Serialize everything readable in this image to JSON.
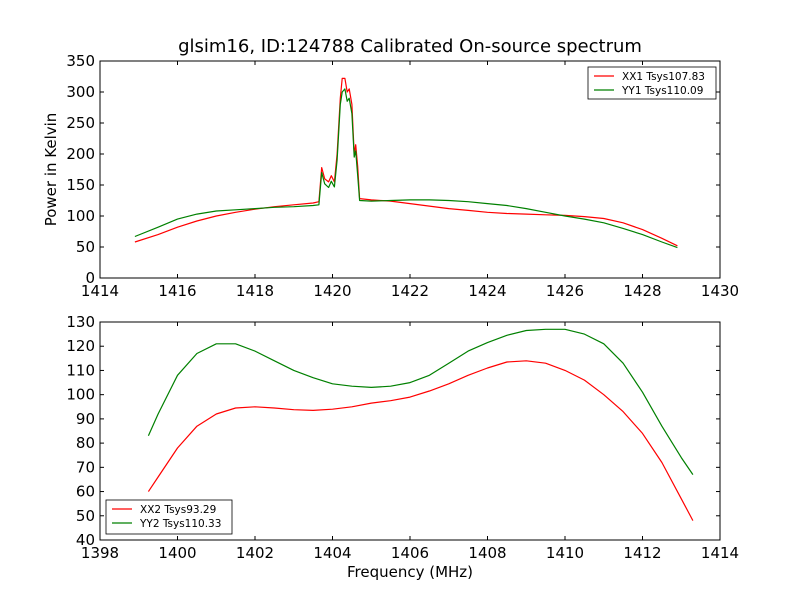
{
  "title": "glsim16, ID:124788 Calibrated On-source spectrum",
  "colors": {
    "red": "#ff0000",
    "green": "#008000",
    "axes": "#000000"
  },
  "chart_data": [
    {
      "type": "line",
      "title": "glsim16, ID:124788 Calibrated On-source spectrum",
      "xlabel": "",
      "ylabel": "Power in Kelvin",
      "xlim": [
        1414,
        1430
      ],
      "ylim": [
        0,
        350
      ],
      "xticks": [
        "1414",
        "1416",
        "1418",
        "1420",
        "1422",
        "1424",
        "1426",
        "1428",
        "1430"
      ],
      "yticks": [
        "0",
        "50",
        "100",
        "150",
        "200",
        "250",
        "300",
        "350"
      ],
      "grid": false,
      "legend_position": "top-right",
      "series": [
        {
          "name": "XX1 Tsys107.83",
          "color": "#ff0000",
          "points": [
            [
              1414.9,
              58
            ],
            [
              1415.5,
              70
            ],
            [
              1416,
              82
            ],
            [
              1416.5,
              92
            ],
            [
              1417,
              100
            ],
            [
              1417.5,
              106
            ],
            [
              1418,
              111
            ],
            [
              1418.5,
              115
            ],
            [
              1419,
              118
            ],
            [
              1419.5,
              121
            ],
            [
              1419.65,
              123
            ],
            [
              1419.72,
              178
            ],
            [
              1419.8,
              160
            ],
            [
              1419.9,
              155
            ],
            [
              1419.97,
              165
            ],
            [
              1420.05,
              155
            ],
            [
              1420.12,
              200
            ],
            [
              1420.2,
              290
            ],
            [
              1420.25,
              322
            ],
            [
              1420.32,
              322
            ],
            [
              1420.38,
              300
            ],
            [
              1420.43,
              305
            ],
            [
              1420.5,
              280
            ],
            [
              1420.56,
              200
            ],
            [
              1420.6,
              215
            ],
            [
              1420.65,
              180
            ],
            [
              1420.7,
              128
            ],
            [
              1421,
              126
            ],
            [
              1421.5,
              124
            ],
            [
              1422,
              120
            ],
            [
              1422.5,
              116
            ],
            [
              1423,
              112
            ],
            [
              1423.5,
              109
            ],
            [
              1424,
              106
            ],
            [
              1424.5,
              104
            ],
            [
              1425,
              103
            ],
            [
              1425.5,
              102
            ],
            [
              1426,
              101
            ],
            [
              1426.5,
              99
            ],
            [
              1427,
              96
            ],
            [
              1427.5,
              89
            ],
            [
              1428,
              78
            ],
            [
              1428.5,
              64
            ],
            [
              1428.9,
              52
            ]
          ]
        },
        {
          "name": "YY1 Tsys110.09",
          "color": "#008000",
          "points": [
            [
              1414.9,
              67
            ],
            [
              1415.5,
              82
            ],
            [
              1416,
              95
            ],
            [
              1416.5,
              103
            ],
            [
              1417,
              108
            ],
            [
              1417.5,
              110
            ],
            [
              1418,
              112
            ],
            [
              1418.5,
              114
            ],
            [
              1419,
              115
            ],
            [
              1419.5,
              117
            ],
            [
              1419.65,
              118
            ],
            [
              1419.72,
              170
            ],
            [
              1419.8,
              152
            ],
            [
              1419.9,
              146
            ],
            [
              1419.97,
              156
            ],
            [
              1420.05,
              147
            ],
            [
              1420.12,
              190
            ],
            [
              1420.2,
              280
            ],
            [
              1420.25,
              300
            ],
            [
              1420.32,
              305
            ],
            [
              1420.38,
              285
            ],
            [
              1420.43,
              290
            ],
            [
              1420.5,
              265
            ],
            [
              1420.56,
              195
            ],
            [
              1420.6,
              205
            ],
            [
              1420.65,
              165
            ],
            [
              1420.7,
              125
            ],
            [
              1421,
              124
            ],
            [
              1421.5,
              125
            ],
            [
              1422,
              126
            ],
            [
              1422.5,
              126
            ],
            [
              1423,
              125
            ],
            [
              1423.5,
              123
            ],
            [
              1424,
              120
            ],
            [
              1424.5,
              117
            ],
            [
              1425,
              112
            ],
            [
              1425.5,
              106
            ],
            [
              1426,
              100
            ],
            [
              1426.5,
              95
            ],
            [
              1427,
              89
            ],
            [
              1427.5,
              80
            ],
            [
              1428,
              70
            ],
            [
              1428.5,
              58
            ],
            [
              1428.9,
              49
            ]
          ]
        }
      ]
    },
    {
      "type": "line",
      "title": "",
      "xlabel": "Frequency (MHz)",
      "ylabel": "",
      "xlim": [
        1398,
        1414
      ],
      "ylim": [
        40,
        130
      ],
      "xticks": [
        "1398",
        "1400",
        "1402",
        "1404",
        "1406",
        "1408",
        "1410",
        "1412",
        "1414"
      ],
      "yticks": [
        "40",
        "50",
        "60",
        "70",
        "80",
        "90",
        "100",
        "110",
        "120",
        "130"
      ],
      "grid": false,
      "legend_position": "bottom-left",
      "series": [
        {
          "name": "XX2 Tsys93.29",
          "color": "#ff0000",
          "points": [
            [
              1399.25,
              60
            ],
            [
              1399.5,
              66
            ],
            [
              1400,
              78
            ],
            [
              1400.5,
              87
            ],
            [
              1401,
              92
            ],
            [
              1401.5,
              94.5
            ],
            [
              1402,
              95
            ],
            [
              1402.5,
              94.5
            ],
            [
              1403,
              93.8
            ],
            [
              1403.5,
              93.5
            ],
            [
              1404,
              94
            ],
            [
              1404.5,
              95
            ],
            [
              1405,
              96.5
            ],
            [
              1405.5,
              97.5
            ],
            [
              1406,
              99
            ],
            [
              1406.5,
              101.5
            ],
            [
              1407,
              104.5
            ],
            [
              1407.5,
              108
            ],
            [
              1408,
              111
            ],
            [
              1408.5,
              113.5
            ],
            [
              1409,
              114
            ],
            [
              1409.5,
              113
            ],
            [
              1410,
              110
            ],
            [
              1410.5,
              106
            ],
            [
              1411,
              100
            ],
            [
              1411.5,
              93
            ],
            [
              1412,
              84
            ],
            [
              1412.5,
              72
            ],
            [
              1413,
              57
            ],
            [
              1413.3,
              48
            ]
          ]
        },
        {
          "name": "YY2 Tsys110.33",
          "color": "#008000",
          "points": [
            [
              1399.25,
              83
            ],
            [
              1399.5,
              92
            ],
            [
              1400,
              108
            ],
            [
              1400.5,
              117
            ],
            [
              1401,
              121
            ],
            [
              1401.5,
              121
            ],
            [
              1402,
              118
            ],
            [
              1402.5,
              114
            ],
            [
              1403,
              110
            ],
            [
              1403.5,
              107
            ],
            [
              1404,
              104.5
            ],
            [
              1404.5,
              103.5
            ],
            [
              1405,
              103
            ],
            [
              1405.5,
              103.5
            ],
            [
              1406,
              105
            ],
            [
              1406.5,
              108
            ],
            [
              1407,
              113
            ],
            [
              1407.5,
              118
            ],
            [
              1408,
              121.5
            ],
            [
              1408.5,
              124.5
            ],
            [
              1409,
              126.5
            ],
            [
              1409.5,
              127
            ],
            [
              1410,
              127
            ],
            [
              1410.5,
              125
            ],
            [
              1411,
              121
            ],
            [
              1411.5,
              113
            ],
            [
              1412,
              101
            ],
            [
              1412.5,
              87
            ],
            [
              1413,
              74
            ],
            [
              1413.3,
              67
            ]
          ]
        }
      ]
    }
  ]
}
